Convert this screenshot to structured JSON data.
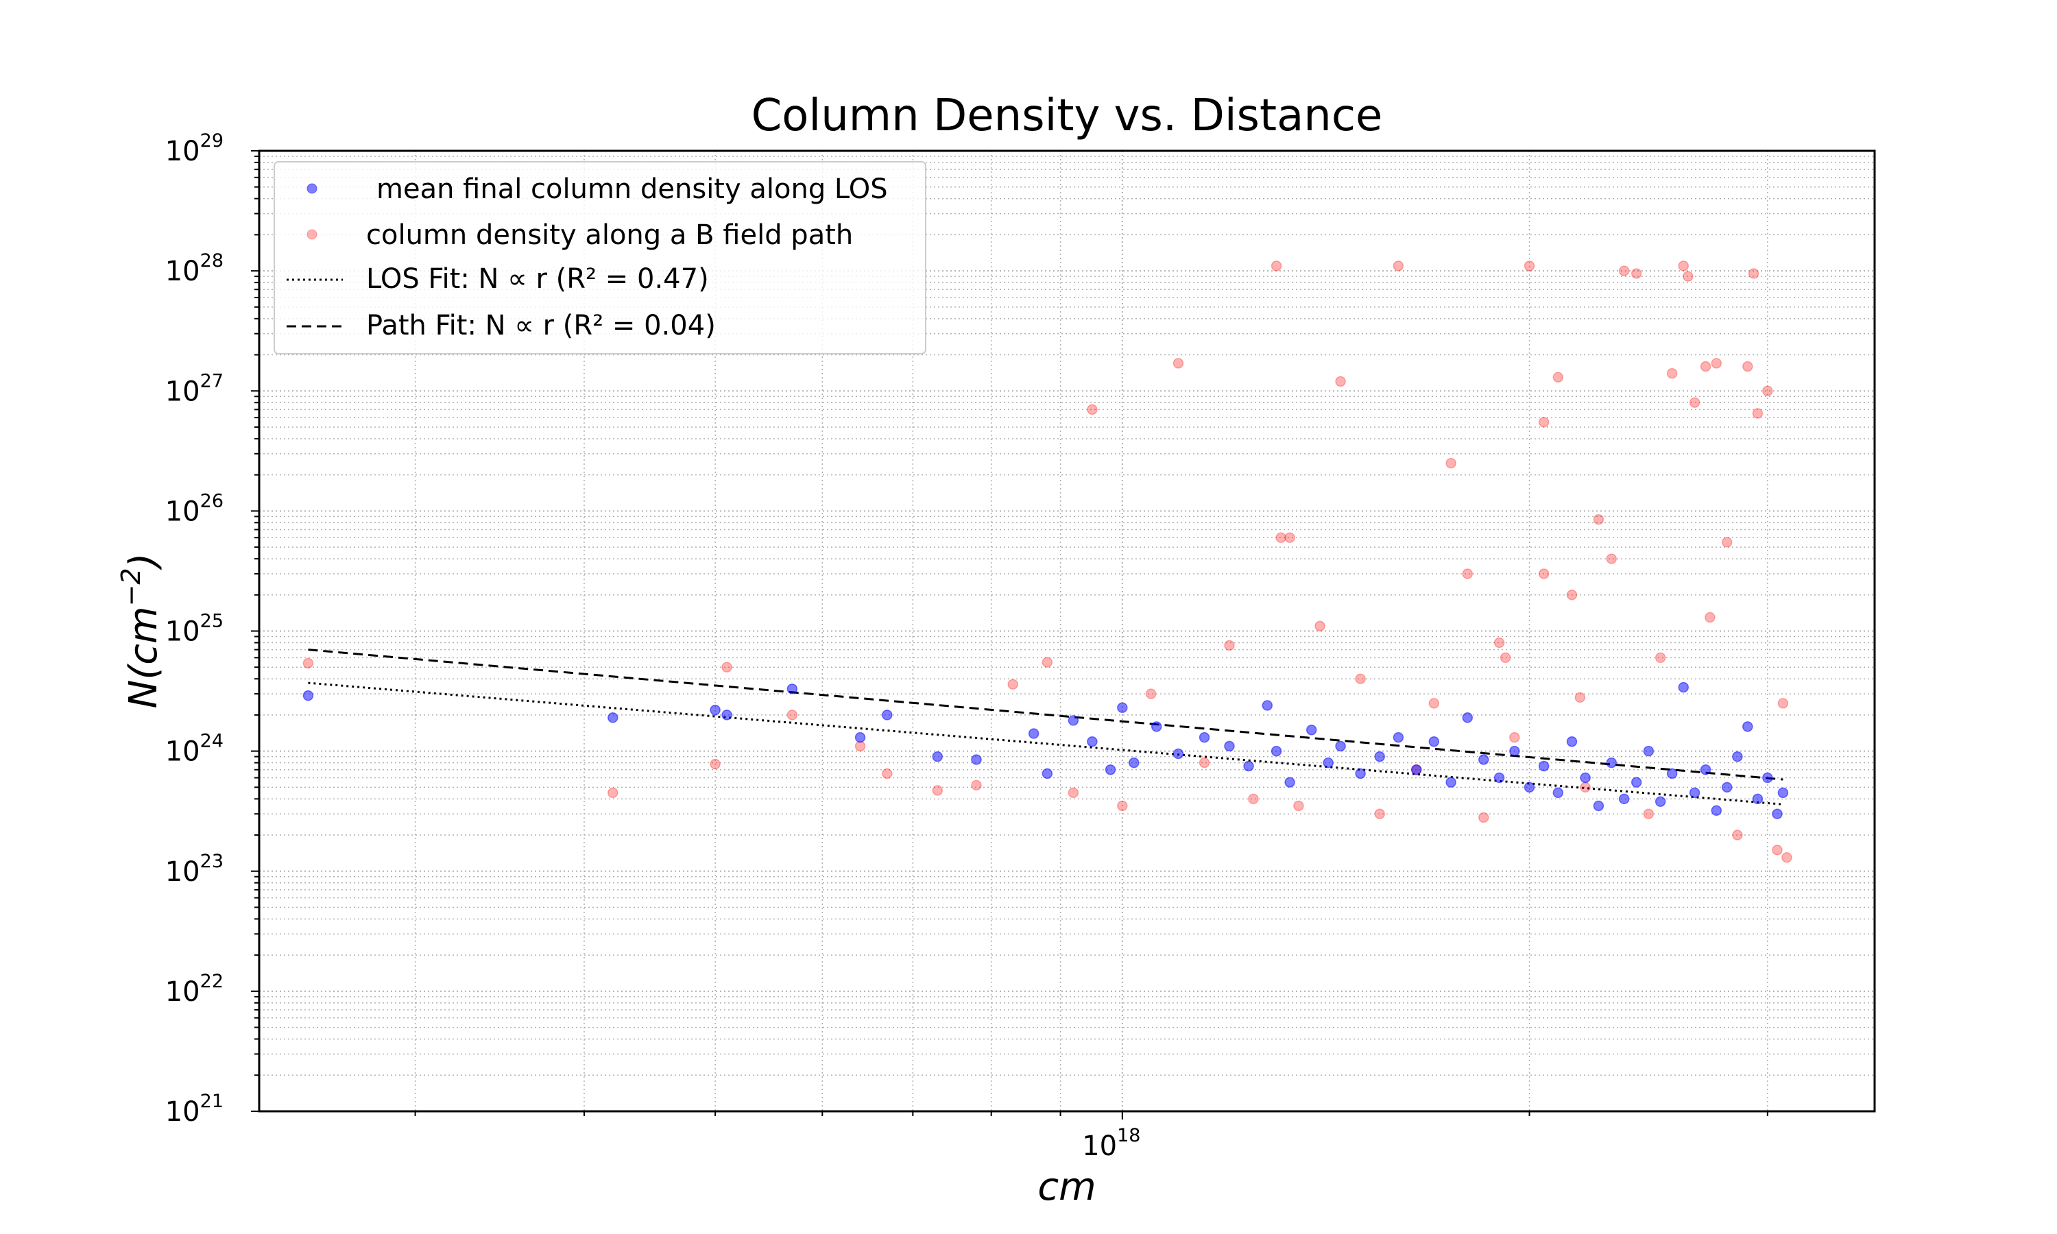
{
  "chart_data": {
    "type": "scatter",
    "title": "Column Density vs. Distance",
    "xlabel": "cm",
    "ylabel": "N(cm^-2)",
    "xscale": "log",
    "yscale": "log",
    "xlim": [
      2.3e+17,
      3.6e+18
    ],
    "ylim": [
      1e+21,
      1e+29
    ],
    "grid": true,
    "grid_style": "dotted, major and minor",
    "legend_position": "upper-left",
    "x_tick_labels": [
      {
        "base": "10",
        "exp": "18"
      }
    ],
    "y_tick_labels": [
      {
        "base": "10",
        "exp": "21"
      },
      {
        "base": "10",
        "exp": "22"
      },
      {
        "base": "10",
        "exp": "23"
      },
      {
        "base": "10",
        "exp": "24"
      },
      {
        "base": "10",
        "exp": "25"
      },
      {
        "base": "10",
        "exp": "26"
      },
      {
        "base": "10",
        "exp": "27"
      },
      {
        "base": "10",
        "exp": "28"
      },
      {
        "base": "10",
        "exp": "29"
      }
    ],
    "x_tick_values": [
      1e+18
    ],
    "y_tick_values": [
      1e+21,
      1e+22,
      1e+23,
      1e+24,
      1e+25,
      1e+26,
      1e+27,
      1e+28,
      1e+29
    ],
    "series": [
      {
        "name": "mean final column density along LOS",
        "kind": "scatter",
        "color": "#0000ff",
        "points": [
          [
            2.5e+17,
            2.9e+24
          ],
          [
            4.2e+17,
            1.9e+24
          ],
          [
            5e+17,
            2.2e+24
          ],
          [
            5.1e+17,
            2e+24
          ],
          [
            5.7e+17,
            3.3e+24
          ],
          [
            6.4e+17,
            1.3e+24
          ],
          [
            6.7e+17,
            2e+24
          ],
          [
            7.3e+17,
            9e+23
          ],
          [
            7.8e+17,
            8.5e+23
          ],
          [
            8.6e+17,
            1.4e+24
          ],
          [
            8.8e+17,
            6.5e+23
          ],
          [
            9.2e+17,
            1.8e+24
          ],
          [
            9.5e+17,
            1.2e+24
          ],
          [
            9.8e+17,
            7e+23
          ],
          [
            1e+18,
            2.3e+24
          ],
          [
            1.02e+18,
            8e+23
          ],
          [
            1.06e+18,
            1.6e+24
          ],
          [
            1.1e+18,
            9.5e+23
          ],
          [
            1.15e+18,
            1.3e+24
          ],
          [
            1.2e+18,
            1.1e+24
          ],
          [
            1.24e+18,
            7.5e+23
          ],
          [
            1.28e+18,
            2.4e+24
          ],
          [
            1.3e+18,
            1e+24
          ],
          [
            1.33e+18,
            5.5e+23
          ],
          [
            1.38e+18,
            1.5e+24
          ],
          [
            1.42e+18,
            8e+23
          ],
          [
            1.45e+18,
            1.1e+24
          ],
          [
            1.5e+18,
            6.5e+23
          ],
          [
            1.55e+18,
            9e+23
          ],
          [
            1.6e+18,
            1.3e+24
          ],
          [
            1.65e+18,
            7e+23
          ],
          [
            1.7e+18,
            1.2e+24
          ],
          [
            1.75e+18,
            5.5e+23
          ],
          [
            1.8e+18,
            1.9e+24
          ],
          [
            1.85e+18,
            8.5e+23
          ],
          [
            1.9e+18,
            6e+23
          ],
          [
            1.95e+18,
            1e+24
          ],
          [
            2e+18,
            5e+23
          ],
          [
            2.05e+18,
            7.5e+23
          ],
          [
            2.1e+18,
            4.5e+23
          ],
          [
            2.15e+18,
            1.2e+24
          ],
          [
            2.2e+18,
            6e+23
          ],
          [
            2.25e+18,
            3.5e+23
          ],
          [
            2.3e+18,
            8e+23
          ],
          [
            2.35e+18,
            4e+23
          ],
          [
            2.4e+18,
            5.5e+23
          ],
          [
            2.45e+18,
            1e+24
          ],
          [
            2.5e+18,
            3.8e+23
          ],
          [
            2.55e+18,
            6.5e+23
          ],
          [
            2.6e+18,
            3.4e+24
          ],
          [
            2.65e+18,
            4.5e+23
          ],
          [
            2.7e+18,
            7e+23
          ],
          [
            2.75e+18,
            3.2e+23
          ],
          [
            2.8e+18,
            5e+23
          ],
          [
            2.85e+18,
            9e+23
          ],
          [
            2.9e+18,
            1.6e+24
          ],
          [
            2.95e+18,
            4e+23
          ],
          [
            3e+18,
            6e+23
          ],
          [
            3.05e+18,
            3e+23
          ],
          [
            3.08e+18,
            4.5e+23
          ]
        ]
      },
      {
        "name": "column density along a B field path",
        "kind": "scatter",
        "color": "#ff0000",
        "points": [
          [
            2.5e+17,
            5.4e+24
          ],
          [
            4.2e+17,
            4.5e+23
          ],
          [
            5e+17,
            7.8e+23
          ],
          [
            5.1e+17,
            5e+24
          ],
          [
            5.7e+17,
            2e+24
          ],
          [
            6.4e+17,
            1.1e+24
          ],
          [
            6.7e+17,
            6.5e+23
          ],
          [
            7.3e+17,
            4.7e+23
          ],
          [
            7.8e+17,
            5.2e+23
          ],
          [
            8.3e+17,
            3.6e+24
          ],
          [
            8.8e+17,
            5.5e+24
          ],
          [
            9.2e+17,
            4.5e+23
          ],
          [
            9.5e+17,
            7e+26
          ],
          [
            1e+18,
            3.5e+23
          ],
          [
            1.05e+18,
            3e+24
          ],
          [
            1.1e+18,
            1.7e+27
          ],
          [
            1.15e+18,
            8e+23
          ],
          [
            1.2e+18,
            7.6e+24
          ],
          [
            1.25e+18,
            4e+23
          ],
          [
            1.3e+18,
            1.1e+28
          ],
          [
            1.31e+18,
            6e+25
          ],
          [
            1.33e+18,
            6e+25
          ],
          [
            1.35e+18,
            3.5e+23
          ],
          [
            1.4e+18,
            1.1e+25
          ],
          [
            1.45e+18,
            1.2e+27
          ],
          [
            1.5e+18,
            4e+24
          ],
          [
            1.55e+18,
            3e+23
          ],
          [
            1.6e+18,
            1.1e+28
          ],
          [
            1.65e+18,
            7e+23
          ],
          [
            1.7e+18,
            2.5e+24
          ],
          [
            1.75e+18,
            2.5e+26
          ],
          [
            1.8e+18,
            3e+25
          ],
          [
            1.85e+18,
            2.8e+23
          ],
          [
            1.9e+18,
            8e+24
          ],
          [
            1.95e+18,
            1.3e+24
          ],
          [
            2e+18,
            1.1e+28
          ],
          [
            2.05e+18,
            5.5e+26
          ],
          [
            2.1e+18,
            1.3e+27
          ],
          [
            2.15e+18,
            2e+25
          ],
          [
            2.2e+18,
            5e+23
          ],
          [
            2.25e+18,
            8.5e+25
          ],
          [
            2.3e+18,
            4e+25
          ],
          [
            2.35e+18,
            1e+28
          ],
          [
            2.4e+18,
            9.5e+27
          ],
          [
            2.45e+18,
            3e+23
          ],
          [
            2.5e+18,
            6e+24
          ],
          [
            2.55e+18,
            1.4e+27
          ],
          [
            2.6e+18,
            1.1e+28
          ],
          [
            2.65e+18,
            8e+26
          ],
          [
            2.7e+18,
            1.6e+27
          ],
          [
            2.75e+18,
            1.7e+27
          ],
          [
            2.8e+18,
            5.5e+25
          ],
          [
            2.85e+18,
            2e+23
          ],
          [
            2.9e+18,
            1.6e+27
          ],
          [
            2.95e+18,
            6.5e+26
          ],
          [
            3e+18,
            1e+27
          ],
          [
            3.05e+18,
            1.5e+23
          ],
          [
            3.08e+18,
            2.5e+24
          ],
          [
            3.1e+18,
            1.3e+23
          ],
          [
            2.62e+18,
            9e+27
          ],
          [
            2.93e+18,
            9.5e+27
          ],
          [
            2.72e+18,
            1.3e+25
          ],
          [
            2.18e+18,
            2.8e+24
          ],
          [
            1.92e+18,
            6e+24
          ],
          [
            2.05e+18,
            3e+25
          ]
        ]
      },
      {
        "name": "LOS Fit: N ∝ r (R² = 0.47)",
        "kind": "line",
        "style": "dotted",
        "color": "#000000",
        "points": [
          [
            2.5e+17,
            3.7e+24
          ],
          [
            3.08e+18,
            3.6e+23
          ]
        ]
      },
      {
        "name": "Path Fit: N ∝ r (R² = 0.04)",
        "kind": "line",
        "style": "dashed",
        "color": "#000000",
        "points": [
          [
            2.5e+17,
            7e+24
          ],
          [
            3.08e+18,
            5.8e+23
          ]
        ]
      }
    ]
  }
}
